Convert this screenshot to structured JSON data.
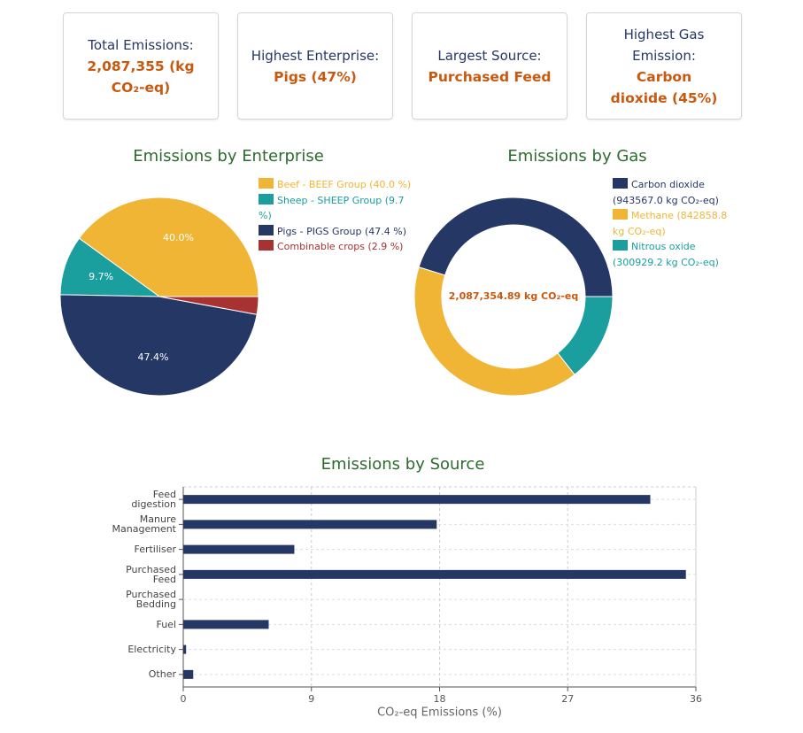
{
  "cards": [
    {
      "label": "Total Emissions:",
      "value": "2,087,355 (kg CO₂-eq)"
    },
    {
      "label": "Highest Enterprise:",
      "value": "Pigs (47%)"
    },
    {
      "label": "Largest Source:",
      "value": "Purchased Feed"
    },
    {
      "label": "Highest Gas Emission:",
      "value": "Carbon dioxide (45%)"
    }
  ],
  "chart_data": [
    {
      "type": "pie",
      "title": "Emissions by Enterprise",
      "categories": [
        "Beef - BEEF Group (40.0 %)",
        "Sheep - SHEEP Group (9.7 %)",
        "Pigs  - PIGS Group (47.4 %)",
        "Combinable crops (2.9 %)"
      ],
      "values": [
        40.0,
        9.7,
        47.4,
        2.9
      ],
      "value_labels": [
        "40.0%",
        "9.7%",
        "47.4%",
        null
      ],
      "colors": [
        "#f0b535",
        "#1a9e9e",
        "#253765",
        "#a83232"
      ]
    },
    {
      "type": "donut",
      "title": "Emissions by Gas",
      "categories": [
        "Carbon dioxide (943567.0 kg CO₂-eq)",
        "Methane (842858.8 kg CO₂-eq)",
        "Nitrous oxide (300929.2 kg CO₂-eq)"
      ],
      "values": [
        943567.0,
        842858.8,
        300929.2
      ],
      "colors": [
        "#253765",
        "#f0b535",
        "#1a9e9e"
      ],
      "center_label": "2,087,354.89 kg CO₂-eq"
    },
    {
      "type": "hbar",
      "title": "Emissions by Source",
      "categories": [
        "Feed digestion",
        "Manure Management",
        "Fertiliser",
        "Purchased Feed",
        "Purchased Bedding",
        "Fuel",
        "Electricity",
        "Other"
      ],
      "values": [
        32.8,
        17.8,
        7.8,
        35.3,
        0,
        6.0,
        0.2,
        0.7
      ],
      "color": "#253765",
      "xlim": [
        0,
        36
      ],
      "xticks": [
        0,
        9,
        18,
        27,
        36
      ],
      "xlabel": "CO₂-eq Emissions (%)",
      "grid": true
    }
  ]
}
